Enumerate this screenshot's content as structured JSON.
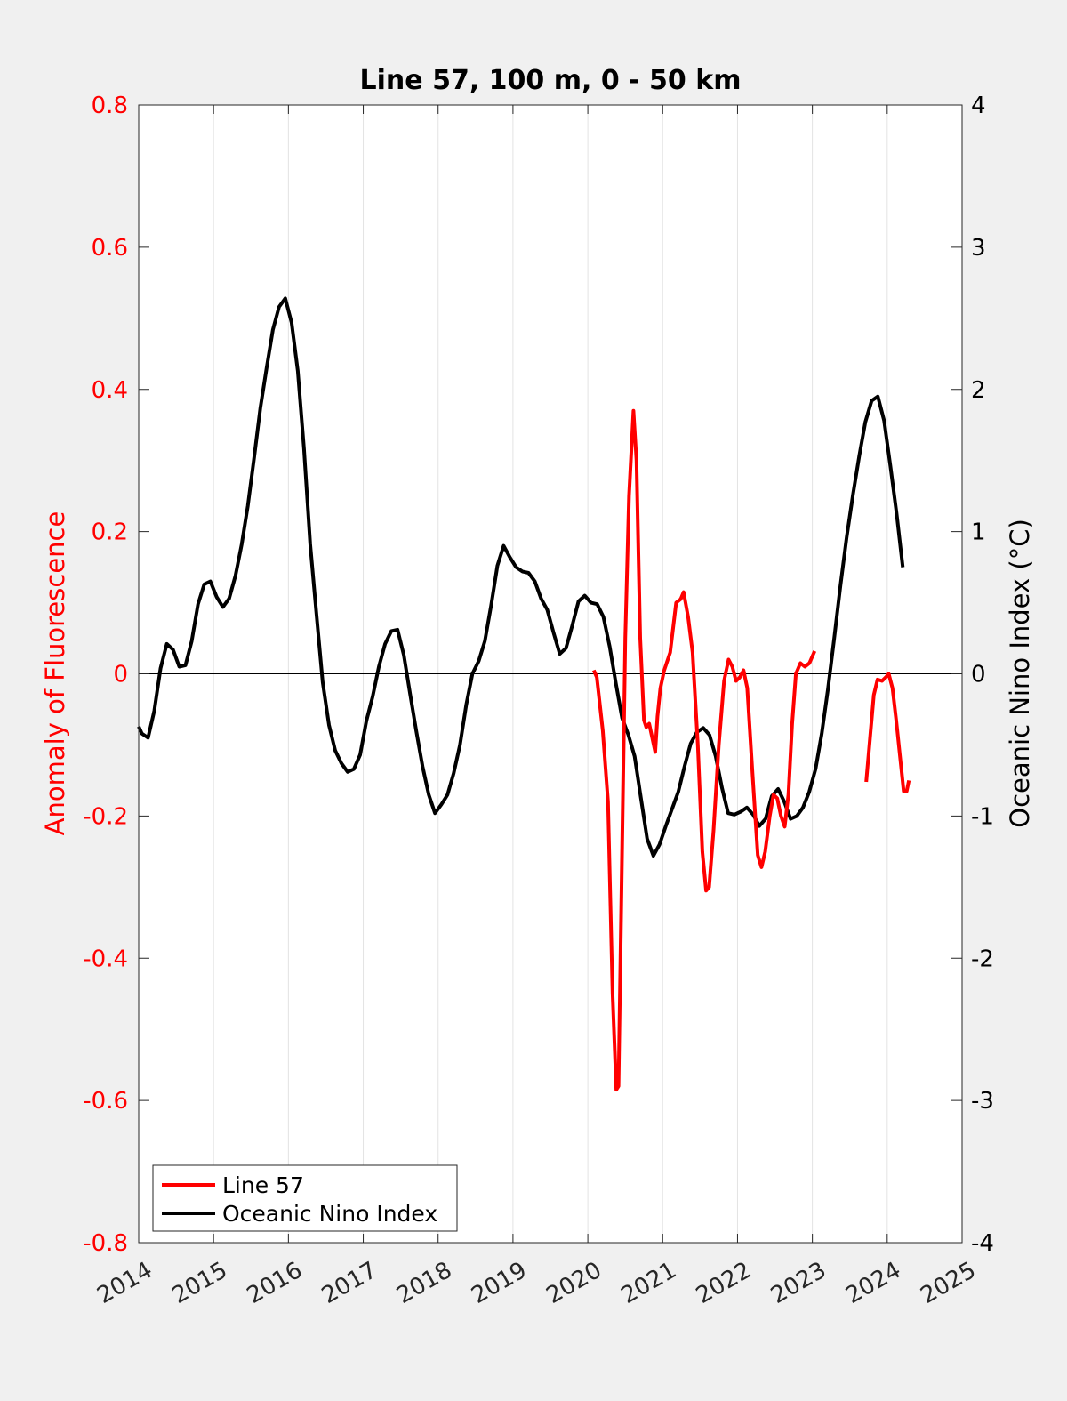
{
  "chart_data": {
    "type": "line",
    "title": "Line 57, 100 m, 0 - 50 km",
    "xlabel": "",
    "xlim": [
      2014,
      2025
    ],
    "xticks": [
      2014,
      2015,
      2016,
      2017,
      2018,
      2019,
      2020,
      2021,
      2022,
      2023,
      2024,
      2025
    ],
    "x_tick_labels": [
      "2014",
      "2015",
      "2016",
      "2017",
      "2018",
      "2019",
      "2020",
      "2021",
      "2022",
      "2023",
      "2024",
      "2025"
    ],
    "xgrid": true,
    "y_left": {
      "label": "Anomaly of Fluorescence",
      "color": "#ff0000",
      "ylim": [
        -0.8,
        0.8
      ],
      "ticks": [
        0.8,
        0.6,
        0.4,
        0.2,
        0,
        -0.2,
        -0.4,
        -0.6,
        -0.8
      ],
      "tick_labels": [
        "0.8",
        "0.6",
        "0.4",
        "0.2",
        "0",
        "-0.2",
        "-0.4",
        "-0.6",
        "-0.8"
      ]
    },
    "y_right": {
      "label": "Oceanic Nino Index (°C)",
      "color": "#000000",
      "ylim": [
        -4,
        4
      ],
      "ticks": [
        4,
        3,
        2,
        1,
        0,
        -1,
        -2,
        -3,
        -4
      ],
      "tick_labels": [
        "4",
        "3",
        "2",
        "1",
        "0",
        "-1",
        "-2",
        "-3",
        "-4"
      ]
    },
    "zero_line": true,
    "legend": {
      "position": "bottom-left",
      "entries": [
        {
          "name": "Line 57",
          "color": "#ff0000"
        },
        {
          "name": "Oceanic Nino Index",
          "color": "#000000"
        }
      ]
    },
    "series": [
      {
        "name": "Line 57",
        "axis": "left",
        "color": "#ff0000",
        "segments": [
          [
            [
              2020.08,
              0.005
            ],
            [
              2020.12,
              -0.005
            ],
            [
              2020.2,
              -0.08
            ],
            [
              2020.27,
              -0.18
            ],
            [
              2020.33,
              -0.45
            ],
            [
              2020.38,
              -0.585
            ],
            [
              2020.41,
              -0.58
            ],
            [
              2020.45,
              -0.3
            ],
            [
              2020.5,
              0.05
            ],
            [
              2020.55,
              0.25
            ],
            [
              2020.61,
              0.37
            ],
            [
              2020.65,
              0.3
            ],
            [
              2020.7,
              0.05
            ],
            [
              2020.75,
              -0.065
            ],
            [
              2020.78,
              -0.075
            ],
            [
              2020.82,
              -0.07
            ],
            [
              2020.86,
              -0.09
            ],
            [
              2020.9,
              -0.11
            ],
            [
              2020.93,
              -0.06
            ],
            [
              2020.97,
              -0.02
            ],
            [
              2021.02,
              0.005
            ],
            [
              2021.1,
              0.03
            ],
            [
              2021.18,
              0.1
            ],
            [
              2021.24,
              0.105
            ],
            [
              2021.28,
              0.115
            ],
            [
              2021.34,
              0.08
            ],
            [
              2021.4,
              0.03
            ],
            [
              2021.47,
              -0.1
            ],
            [
              2021.53,
              -0.25
            ],
            [
              2021.58,
              -0.305
            ],
            [
              2021.62,
              -0.3
            ],
            [
              2021.68,
              -0.22
            ],
            [
              2021.75,
              -0.1
            ],
            [
              2021.82,
              -0.01
            ],
            [
              2021.88,
              0.02
            ],
            [
              2021.93,
              0.01
            ],
            [
              2021.98,
              -0.01
            ],
            [
              2022.03,
              -0.005
            ],
            [
              2022.08,
              0.005
            ],
            [
              2022.13,
              -0.02
            ],
            [
              2022.2,
              -0.14
            ],
            [
              2022.27,
              -0.255
            ],
            [
              2022.32,
              -0.272
            ],
            [
              2022.37,
              -0.25
            ],
            [
              2022.43,
              -0.2
            ],
            [
              2022.48,
              -0.17
            ],
            [
              2022.53,
              -0.175
            ],
            [
              2022.58,
              -0.2
            ],
            [
              2022.63,
              -0.215
            ],
            [
              2022.68,
              -0.17
            ],
            [
              2022.73,
              -0.07
            ],
            [
              2022.78,
              0.0
            ],
            [
              2022.84,
              0.015
            ],
            [
              2022.9,
              0.01
            ],
            [
              2022.96,
              0.015
            ],
            [
              2023.03,
              0.032
            ]
          ],
          [
            [
              2023.72,
              -0.152
            ],
            [
              2023.77,
              -0.09
            ],
            [
              2023.82,
              -0.03
            ],
            [
              2023.87,
              -0.008
            ],
            [
              2023.93,
              -0.01
            ],
            [
              2023.98,
              -0.005
            ],
            [
              2024.02,
              0.0
            ],
            [
              2024.07,
              -0.02
            ],
            [
              2024.12,
              -0.065
            ],
            [
              2024.17,
              -0.115
            ],
            [
              2024.22,
              -0.165
            ],
            [
              2024.26,
              -0.165
            ],
            [
              2024.29,
              -0.15
            ]
          ]
        ]
      },
      {
        "name": "Oceanic Nino Index",
        "axis": "right",
        "color": "#000000",
        "segments": [
          [
            [
              2014.0,
              -0.37
            ],
            [
              2014.042,
              -0.42
            ],
            [
              2014.125,
              -0.45
            ],
            [
              2014.208,
              -0.26
            ],
            [
              2014.292,
              0.04
            ],
            [
              2014.375,
              0.21
            ],
            [
              2014.458,
              0.17
            ],
            [
              2014.542,
              0.05
            ],
            [
              2014.625,
              0.06
            ],
            [
              2014.708,
              0.23
            ],
            [
              2014.792,
              0.49
            ],
            [
              2014.875,
              0.63
            ],
            [
              2014.958,
              0.65
            ],
            [
              2015.042,
              0.54
            ],
            [
              2015.125,
              0.47
            ],
            [
              2015.208,
              0.53
            ],
            [
              2015.292,
              0.69
            ],
            [
              2015.375,
              0.91
            ],
            [
              2015.458,
              1.18
            ],
            [
              2015.542,
              1.52
            ],
            [
              2015.625,
              1.87
            ],
            [
              2015.708,
              2.15
            ],
            [
              2015.792,
              2.42
            ],
            [
              2015.875,
              2.58
            ],
            [
              2015.958,
              2.64
            ],
            [
              2016.042,
              2.47
            ],
            [
              2016.125,
              2.13
            ],
            [
              2016.208,
              1.58
            ],
            [
              2016.292,
              0.91
            ],
            [
              2016.375,
              0.42
            ],
            [
              2016.458,
              -0.06
            ],
            [
              2016.542,
              -0.36
            ],
            [
              2016.625,
              -0.54
            ],
            [
              2016.708,
              -0.63
            ],
            [
              2016.792,
              -0.69
            ],
            [
              2016.875,
              -0.67
            ],
            [
              2016.958,
              -0.57
            ],
            [
              2017.042,
              -0.33
            ],
            [
              2017.125,
              -0.16
            ],
            [
              2017.208,
              0.05
            ],
            [
              2017.292,
              0.21
            ],
            [
              2017.375,
              0.3
            ],
            [
              2017.458,
              0.31
            ],
            [
              2017.542,
              0.13
            ],
            [
              2017.625,
              -0.14
            ],
            [
              2017.708,
              -0.4
            ],
            [
              2017.792,
              -0.65
            ],
            [
              2017.875,
              -0.85
            ],
            [
              2017.958,
              -0.98
            ],
            [
              2018.042,
              -0.92
            ],
            [
              2018.125,
              -0.85
            ],
            [
              2018.208,
              -0.7
            ],
            [
              2018.292,
              -0.5
            ],
            [
              2018.375,
              -0.22
            ],
            [
              2018.458,
              0.0
            ],
            [
              2018.542,
              0.09
            ],
            [
              2018.625,
              0.23
            ],
            [
              2018.708,
              0.48
            ],
            [
              2018.792,
              0.76
            ],
            [
              2018.875,
              0.9
            ],
            [
              2018.958,
              0.82
            ],
            [
              2019.042,
              0.75
            ],
            [
              2019.125,
              0.72
            ],
            [
              2019.208,
              0.71
            ],
            [
              2019.292,
              0.65
            ],
            [
              2019.375,
              0.53
            ],
            [
              2019.458,
              0.45
            ],
            [
              2019.542,
              0.29
            ],
            [
              2019.625,
              0.14
            ],
            [
              2019.708,
              0.18
            ],
            [
              2019.792,
              0.34
            ],
            [
              2019.875,
              0.51
            ],
            [
              2019.958,
              0.55
            ],
            [
              2020.042,
              0.5
            ],
            [
              2020.125,
              0.49
            ],
            [
              2020.208,
              0.4
            ],
            [
              2020.292,
              0.19
            ],
            [
              2020.375,
              -0.07
            ],
            [
              2020.458,
              -0.31
            ],
            [
              2020.542,
              -0.43
            ],
            [
              2020.625,
              -0.58
            ],
            [
              2020.708,
              -0.87
            ],
            [
              2020.792,
              -1.16
            ],
            [
              2020.875,
              -1.28
            ],
            [
              2020.958,
              -1.2
            ],
            [
              2021.042,
              -1.07
            ],
            [
              2021.125,
              -0.95
            ],
            [
              2021.208,
              -0.83
            ],
            [
              2021.292,
              -0.65
            ],
            [
              2021.375,
              -0.49
            ],
            [
              2021.458,
              -0.41
            ],
            [
              2021.542,
              -0.38
            ],
            [
              2021.625,
              -0.43
            ],
            [
              2021.708,
              -0.58
            ],
            [
              2021.792,
              -0.8
            ],
            [
              2021.875,
              -0.98
            ],
            [
              2021.958,
              -0.99
            ],
            [
              2022.042,
              -0.97
            ],
            [
              2022.125,
              -0.94
            ],
            [
              2022.208,
              -0.99
            ],
            [
              2022.292,
              -1.07
            ],
            [
              2022.375,
              -1.02
            ],
            [
              2022.458,
              -0.86
            ],
            [
              2022.542,
              -0.81
            ],
            [
              2022.625,
              -0.9
            ],
            [
              2022.708,
              -1.02
            ],
            [
              2022.792,
              -1.0
            ],
            [
              2022.875,
              -0.94
            ],
            [
              2022.958,
              -0.83
            ],
            [
              2023.042,
              -0.67
            ],
            [
              2023.125,
              -0.42
            ],
            [
              2023.208,
              -0.11
            ],
            [
              2023.292,
              0.25
            ],
            [
              2023.375,
              0.62
            ],
            [
              2023.458,
              0.96
            ],
            [
              2023.542,
              1.26
            ],
            [
              2023.625,
              1.53
            ],
            [
              2023.708,
              1.77
            ],
            [
              2023.792,
              1.92
            ],
            [
              2023.875,
              1.95
            ],
            [
              2023.958,
              1.78
            ],
            [
              2024.042,
              1.46
            ],
            [
              2024.125,
              1.13
            ],
            [
              2024.208,
              0.75
            ]
          ]
        ]
      }
    ]
  }
}
